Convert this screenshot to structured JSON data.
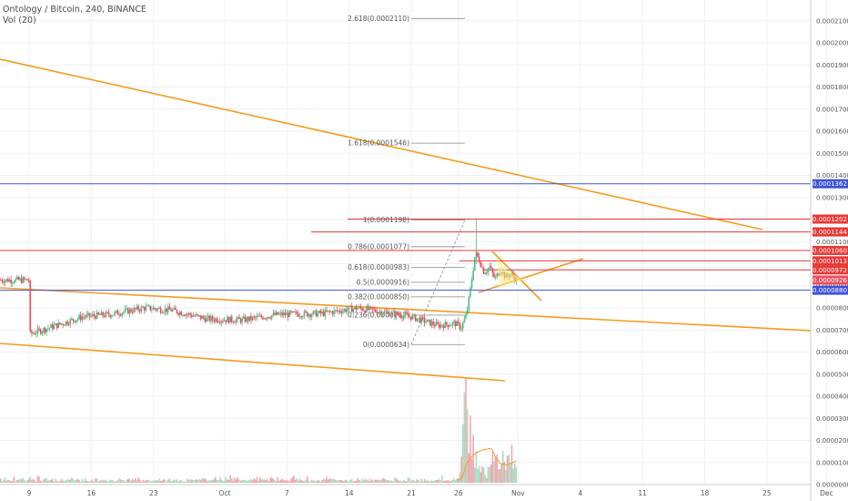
{
  "header": {
    "title": "Ontology / Bitcoin, 240, BINANCE",
    "indicator": "Vol (20)"
  },
  "colors": {
    "up": "#53b987",
    "down": "#eb4d5c",
    "trendline": "#f59b1d",
    "hline_red": "#e53935",
    "hline_blue": "#3f51d6",
    "fib": "#8a8a8a",
    "vol_up": "#a9dcc3",
    "vol_down": "#f5a6ae",
    "vol_ma": "#f59b1d"
  },
  "chart_data": {
    "type": "candlestick",
    "symbol": "Ontology / Bitcoin",
    "interval": "240",
    "exchange": "BINANCE",
    "ylim": [
      0.0,
      0.000215
    ],
    "y_ticks": [
      "0.0002100",
      "0.0002000",
      "0.0001900",
      "0.0001800",
      "0.0001700",
      "0.0001600",
      "0.0001500",
      "0.0001400",
      "0.0001300",
      "0.0001200",
      "0.0001100",
      "0.0001000",
      "0.0000900",
      "0.0000800",
      "0.0000700",
      "0.0000600",
      "0.0000500",
      "0.0000400",
      "0.0000300",
      "0.0000200",
      "0.0000100",
      "0.0000000"
    ],
    "x_ticks": [
      "9",
      "16",
      "23",
      "Oct",
      "7",
      "14",
      "21",
      "26",
      "Nov",
      "4",
      "11",
      "18",
      "25",
      "Dec"
    ],
    "price_path": [
      {
        "d": 0,
        "p": 6.8e-05
      },
      {
        "d": 3,
        "p": 7.2e-05
      },
      {
        "d": 6,
        "p": 7.6e-05
      },
      {
        "d": 9,
        "p": 7.7e-05
      },
      {
        "d": 13,
        "p": 8e-05
      },
      {
        "d": 16,
        "p": 7.9e-05
      },
      {
        "d": 20,
        "p": 7.5e-05
      },
      {
        "d": 24,
        "p": 7.45e-05
      },
      {
        "d": 28,
        "p": 7.7e-05
      },
      {
        "d": 33,
        "p": 7.75e-05
      },
      {
        "d": 37,
        "p": 8e-05
      },
      {
        "d": 40,
        "p": 7.8e-05
      },
      {
        "d": 43,
        "p": 7.6e-05
      },
      {
        "d": 46,
        "p": 7.2e-05
      },
      {
        "d": 48,
        "p": 7.3e-05
      },
      {
        "d": 48.6,
        "p": 7.1e-05
      },
      {
        "d": 49.2,
        "p": 7.7e-05
      },
      {
        "d": 49.7,
        "p": 9e-05
      },
      {
        "d": 50.2,
        "p": 0.000105
      },
      {
        "d": 50.6,
        "p": 0.000102
      },
      {
        "d": 51.2,
        "p": 9.6e-05
      },
      {
        "d": 51.8,
        "p": 9.85e-05
      },
      {
        "d": 52.4,
        "p": 9.3e-05
      },
      {
        "d": 53,
        "p": 9.75e-05
      },
      {
        "d": 53.6,
        "p": 9.4e-05
      },
      {
        "d": 54.2,
        "p": 9.55e-05
      },
      {
        "d": 54.8,
        "p": 9.26e-05
      }
    ],
    "last_price": "0.0000926",
    "horizontal_levels": [
      {
        "label": "0.0001362",
        "value": 0.0001362,
        "color": "blue"
      },
      {
        "label": "0.0001202",
        "value": 0.0001202,
        "color": "red"
      },
      {
        "label": "0.0001144",
        "value": 0.0001144,
        "color": "red"
      },
      {
        "label": "0.0001060",
        "value": 0.000106,
        "color": "red"
      },
      {
        "label": "0.0001013",
        "value": 0.0001013,
        "color": "red"
      },
      {
        "label": "0.0000972",
        "value": 9.72e-05,
        "color": "red"
      },
      {
        "label": "0.0000880",
        "value": 8.8e-05,
        "color": "blue"
      }
    ],
    "fib_levels": [
      {
        "ratio": "2.618",
        "label": "2.618(0.0002110)",
        "value": 0.000211
      },
      {
        "ratio": "1.618",
        "label": "1.618(0.0001546)",
        "value": 0.0001546
      },
      {
        "ratio": "1",
        "label": "1(0.0001198)",
        "value": 0.0001198
      },
      {
        "ratio": "0.786",
        "label": "0.786(0.0001077)",
        "value": 0.0001077
      },
      {
        "ratio": "0.618",
        "label": "0.618(0.0000983)",
        "value": 9.83e-05
      },
      {
        "ratio": "0.5",
        "label": "0.5(0.0000916)",
        "value": 9.16e-05
      },
      {
        "ratio": "0.382",
        "label": "0.382(0.0000850)",
        "value": 8.5e-05
      },
      {
        "ratio": "0.236",
        "label": "0.236(0.0000767)",
        "value": 7.67e-05
      },
      {
        "ratio": "0",
        "label": "0(0.0000634)",
        "value": 6.34e-05
      }
    ],
    "volume": {
      "base": [
        2,
        3,
        2,
        4,
        3,
        2,
        5,
        3,
        2,
        3,
        4,
        2,
        3,
        5,
        2,
        3,
        2,
        4,
        3,
        2
      ],
      "spike": [
        6,
        10,
        22,
        45,
        70,
        95,
        60,
        40,
        50,
        30,
        38,
        25,
        30,
        20,
        22,
        15,
        18,
        12,
        10,
        8
      ]
    },
    "grid": true
  }
}
